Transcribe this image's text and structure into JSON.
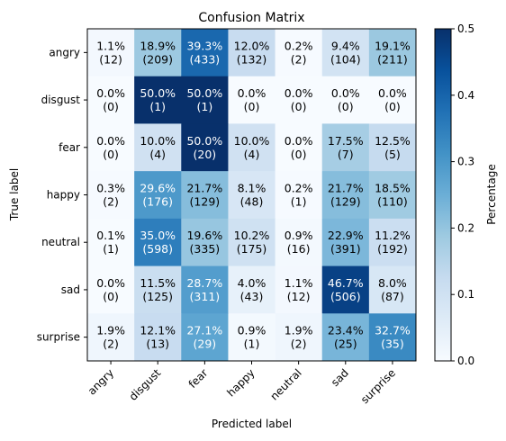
{
  "chart_data": {
    "type": "heatmap",
    "title": "Confusion Matrix",
    "xlabel": "Predicted label",
    "ylabel": "True label",
    "x_categories": [
      "angry",
      "disgust",
      "fear",
      "happy",
      "neutral",
      "sad",
      "surprise"
    ],
    "y_categories": [
      "angry",
      "disgust",
      "fear",
      "happy",
      "neutral",
      "sad",
      "surprise"
    ],
    "percent_labels": [
      [
        "1.1%",
        "18.9%",
        "39.3%",
        "12.0%",
        "0.2%",
        "9.4%",
        "19.1%"
      ],
      [
        "0.0%",
        "50.0%",
        "50.0%",
        "0.0%",
        "0.0%",
        "0.0%",
        "0.0%"
      ],
      [
        "0.0%",
        "10.0%",
        "50.0%",
        "10.0%",
        "0.0%",
        "17.5%",
        "12.5%"
      ],
      [
        "0.3%",
        "29.6%",
        "21.7%",
        "8.1%",
        "0.2%",
        "21.7%",
        "18.5%"
      ],
      [
        "0.1%",
        "35.0%",
        "19.6%",
        "10.2%",
        "0.9%",
        "22.9%",
        "11.2%"
      ],
      [
        "0.0%",
        "11.5%",
        "28.7%",
        "4.0%",
        "1.1%",
        "46.7%",
        "8.0%"
      ],
      [
        "1.9%",
        "12.1%",
        "27.1%",
        "0.9%",
        "1.9%",
        "23.4%",
        "32.7%"
      ]
    ],
    "count_labels": [
      [
        "(12)",
        "(209)",
        "(433)",
        "(132)",
        "(2)",
        "(104)",
        "(211)"
      ],
      [
        "(0)",
        "(1)",
        "(1)",
        "(0)",
        "(0)",
        "(0)",
        "(0)"
      ],
      [
        "(0)",
        "(4)",
        "(20)",
        "(4)",
        "(0)",
        "(7)",
        "(5)"
      ],
      [
        "(2)",
        "(176)",
        "(129)",
        "(48)",
        "(1)",
        "(129)",
        "(110)"
      ],
      [
        "(1)",
        "(598)",
        "(335)",
        "(175)",
        "(16)",
        "(391)",
        "(192)"
      ],
      [
        "(0)",
        "(125)",
        "(311)",
        "(43)",
        "(12)",
        "(506)",
        "(87)"
      ],
      [
        "(2)",
        "(13)",
        "(29)",
        "(1)",
        "(2)",
        "(25)",
        "(35)"
      ]
    ],
    "values": [
      [
        0.011,
        0.189,
        0.393,
        0.12,
        0.002,
        0.094,
        0.191
      ],
      [
        0.0,
        0.5,
        0.5,
        0.0,
        0.0,
        0.0,
        0.0
      ],
      [
        0.0,
        0.1,
        0.5,
        0.1,
        0.0,
        0.175,
        0.125
      ],
      [
        0.003,
        0.296,
        0.217,
        0.081,
        0.002,
        0.217,
        0.185
      ],
      [
        0.001,
        0.35,
        0.196,
        0.102,
        0.009,
        0.229,
        0.112
      ],
      [
        0.0,
        0.115,
        0.287,
        0.04,
        0.011,
        0.467,
        0.08
      ],
      [
        0.019,
        0.121,
        0.271,
        0.009,
        0.019,
        0.234,
        0.327
      ]
    ],
    "colorbar": {
      "label": "Percentage",
      "min": 0.0,
      "max": 0.5,
      "tick_labels": [
        "0.0",
        "0.1",
        "0.2",
        "0.3",
        "0.4",
        "0.5"
      ],
      "colormap": "Blues"
    }
  }
}
